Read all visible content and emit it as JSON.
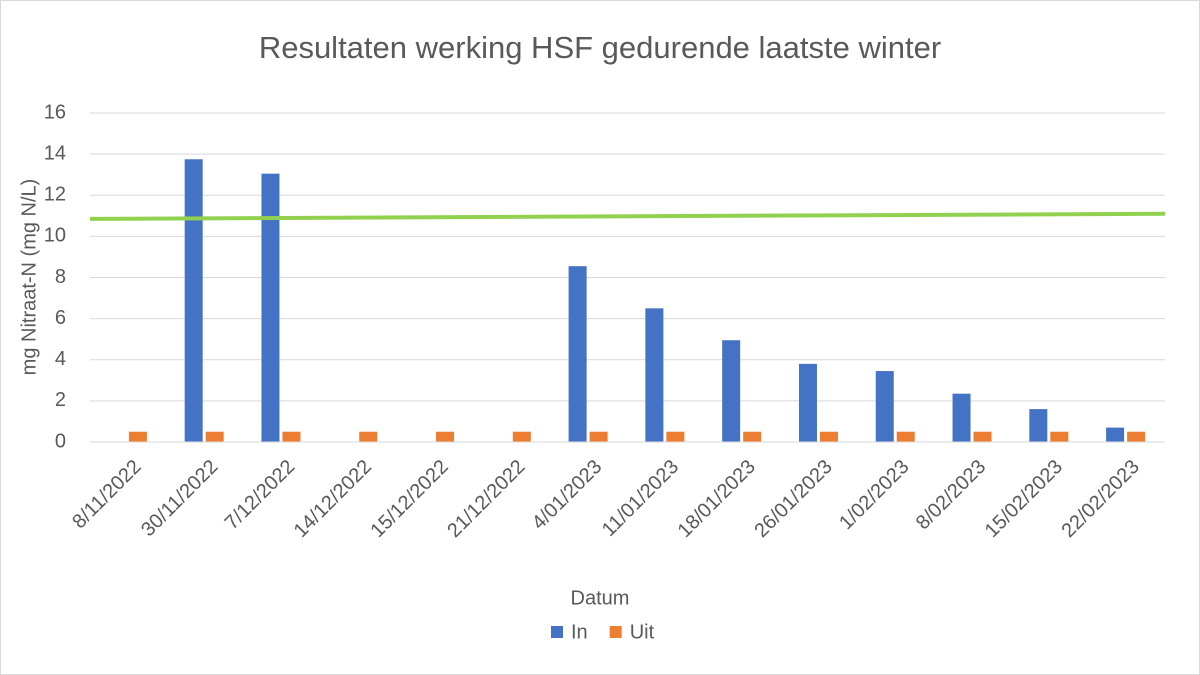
{
  "chart_data": {
    "type": "bar",
    "title": "Resultaten werking HSF gedurende laatste winter",
    "x_label": "Datum",
    "y_label": "mg Nitraat-N (mg N/L)",
    "categories": [
      "8/11/2022",
      "30/11/2022",
      "7/12/2022",
      "14/12/2022",
      "15/12/2022",
      "21/12/2022",
      "4/01/2023",
      "11/01/2023",
      "18/01/2023",
      "26/01/2023",
      "1/02/2023",
      "8/02/2023",
      "15/02/2023",
      "22/02/2023"
    ],
    "series": [
      {
        "name": "In",
        "color": "#4472c4",
        "values": [
          null,
          13.75,
          13.05,
          null,
          null,
          null,
          8.55,
          6.5,
          4.95,
          3.8,
          3.45,
          2.35,
          1.6,
          0.7
        ]
      },
      {
        "name": "Uit",
        "color": "#ed7d31",
        "values": [
          0.5,
          0.5,
          0.5,
          0.5,
          0.5,
          0.5,
          0.5,
          0.5,
          0.5,
          0.5,
          0.5,
          0.5,
          0.5,
          0.5
        ]
      }
    ],
    "trend_line": {
      "color": "#92d050",
      "values": [
        10.85,
        11.1
      ]
    },
    "ylim": [
      0,
      16
    ],
    "yticks": [
      0,
      2,
      4,
      6,
      8,
      10,
      12,
      14,
      16
    ],
    "grid": true,
    "legend": "bottom"
  }
}
